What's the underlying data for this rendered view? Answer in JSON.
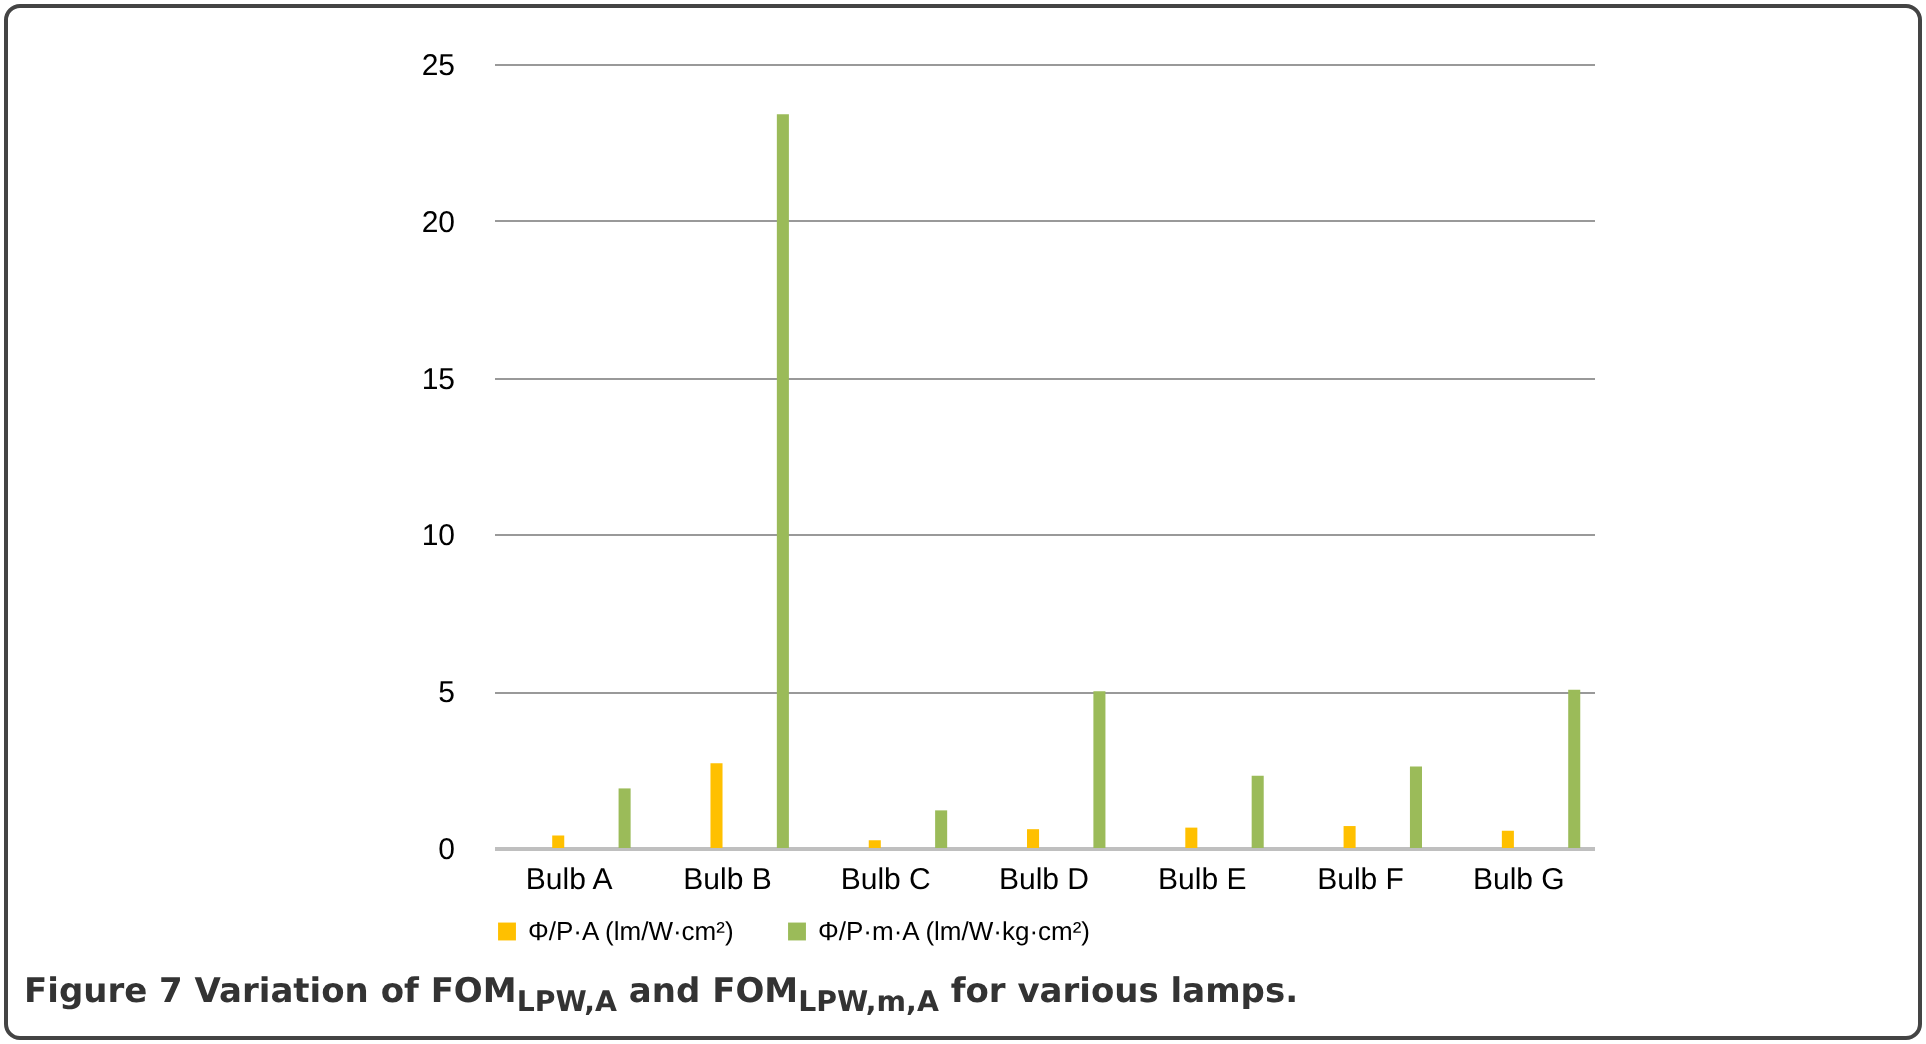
{
  "chart_data": {
    "type": "bar",
    "title": "Figure 7 Variation of FOM$_{LPW,A}$ and FOM$_{LPW,m,A}$ for various lamps.",
    "categories": [
      "Bulb A",
      "Bulb B",
      "Bulb C",
      "Bulb D",
      "Bulb E",
      "Bulb F",
      "Bulb G"
    ],
    "series": [
      {
        "name": "Φ/P·A  (lm/W·cm²)",
        "color": "#ffc000",
        "values": [
          0.4,
          2.7,
          0.25,
          0.6,
          0.65,
          0.7,
          0.55
        ]
      },
      {
        "name": "Φ/P·m·A  (lm/W·kg·cm²)",
        "color": "#9bbb59",
        "values": [
          1.9,
          23.4,
          1.2,
          5.0,
          2.3,
          2.6,
          5.05
        ]
      }
    ],
    "ylim": [
      0,
      25
    ],
    "yticks": [
      0,
      5,
      10,
      15,
      20,
      25
    ],
    "grid": "y",
    "legend": "bottom"
  }
}
